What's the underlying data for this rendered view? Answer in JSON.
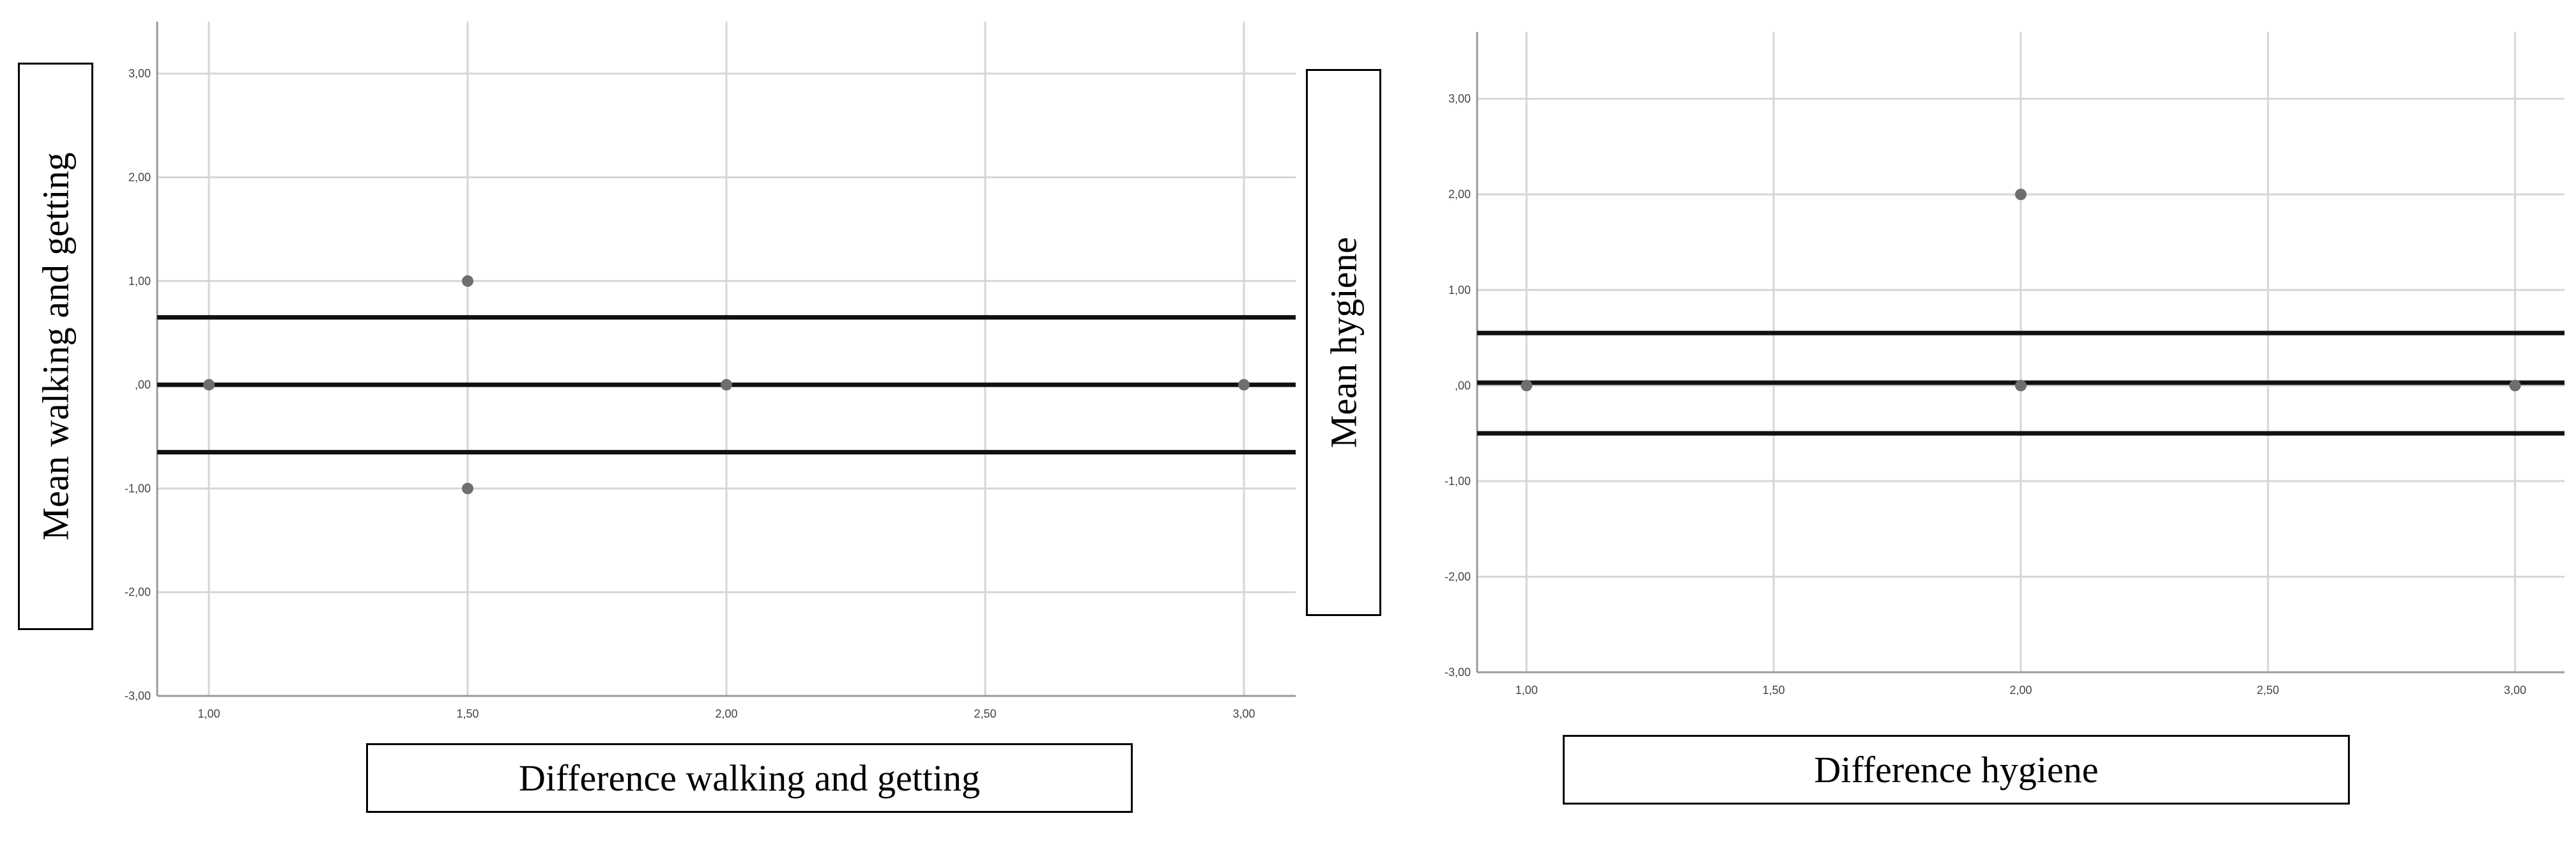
{
  "chart_data": [
    {
      "type": "scatter",
      "title": "",
      "xlabel": "Difference walking and getting",
      "ylabel": "Mean walking and getting",
      "xlim": [
        0.9,
        3.1
      ],
      "ylim": [
        -3.0,
        3.5
      ],
      "x_ticks": [
        1.0,
        1.5,
        2.0,
        2.5,
        3.0
      ],
      "x_tick_labels": [
        "1,00",
        "1,50",
        "2,00",
        "2,50",
        "3,00"
      ],
      "y_ticks": [
        -3,
        -2,
        -1,
        0,
        1,
        2,
        3
      ],
      "y_tick_labels": [
        "-3,00",
        "-2,00",
        "-1,00",
        ",00",
        "1,00",
        "2,00",
        "3,00"
      ],
      "grid": true,
      "points": [
        {
          "x": 1.0,
          "y": 0.0
        },
        {
          "x": 1.5,
          "y": 1.0
        },
        {
          "x": 1.5,
          "y": -1.0
        },
        {
          "x": 2.0,
          "y": 0.0
        },
        {
          "x": 3.0,
          "y": 0.0
        }
      ],
      "reference_lines": [
        0.65,
        0.0,
        -0.65
      ]
    },
    {
      "type": "scatter",
      "title": "",
      "xlabel": "Difference hygiene",
      "ylabel": "Mean hygiene",
      "xlim": [
        0.9,
        3.1
      ],
      "ylim": [
        -3.0,
        3.7
      ],
      "x_ticks": [
        1.0,
        1.5,
        2.0,
        2.5,
        3.0
      ],
      "x_tick_labels": [
        "1,00",
        "1,50",
        "2,00",
        "2,50",
        "3,00"
      ],
      "y_ticks": [
        -3,
        -2,
        -1,
        0,
        1,
        2,
        3
      ],
      "y_tick_labels": [
        "-3,00",
        "-2,00",
        "-1,00",
        ",00",
        "1,00",
        "2,00",
        "3,00"
      ],
      "grid": true,
      "points": [
        {
          "x": 1.0,
          "y": 0.0
        },
        {
          "x": 2.0,
          "y": 2.0
        },
        {
          "x": 2.0,
          "y": 0.0
        },
        {
          "x": 3.0,
          "y": 0.0
        }
      ],
      "reference_lines": [
        0.55,
        0.03,
        -0.5
      ]
    }
  ]
}
